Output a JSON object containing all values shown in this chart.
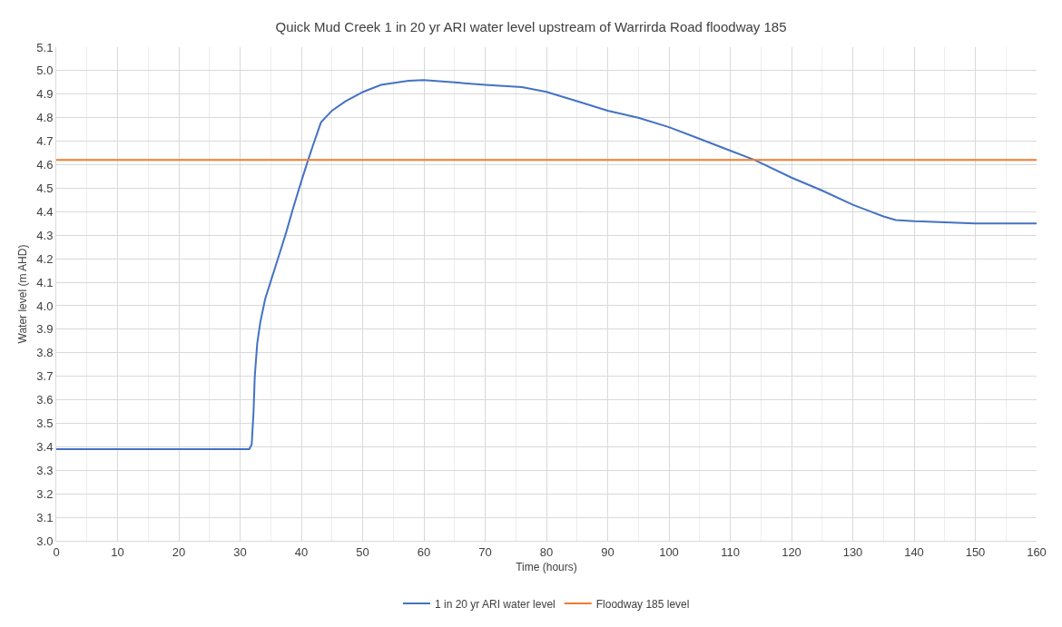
{
  "chart_data": {
    "type": "line",
    "title": "Quick Mud Creek 1 in 20 yr ARI water level upstream of Warrirda Road floodway 185",
    "xlabel": "Time (hours)",
    "ylabel": "Water level (m AHD)",
    "series": [
      {
        "name": "1 in 20 yr ARI water level",
        "color": "#4472c4",
        "x": [
          0,
          10,
          20,
          30,
          30.6,
          31.5,
          31.9,
          32.2,
          32.4,
          32.8,
          33.3,
          34.1,
          35.2,
          36.3,
          37.5,
          38.6,
          40,
          41.1,
          42,
          43.2,
          45,
          47.2,
          50.1,
          53,
          57.5,
          60,
          65,
          70,
          76,
          80,
          85,
          90,
          95,
          100,
          105,
          110,
          114,
          120,
          125,
          130,
          133,
          135,
          137,
          140,
          145,
          150,
          160
        ],
        "values": [
          3.39,
          3.39,
          3.39,
          3.39,
          3.39,
          3.39,
          3.41,
          3.55,
          3.7,
          3.84,
          3.93,
          4.03,
          4.12,
          4.21,
          4.31,
          4.41,
          4.53,
          4.62,
          4.69,
          4.78,
          4.83,
          4.87,
          4.91,
          4.94,
          4.957,
          4.96,
          4.95,
          4.94,
          4.93,
          4.91,
          4.87,
          4.83,
          4.8,
          4.76,
          4.71,
          4.66,
          4.62,
          4.545,
          4.49,
          4.43,
          4.4,
          4.38,
          4.365,
          4.36,
          4.355,
          4.35,
          4.35
        ]
      },
      {
        "name": "Floodway 185 level",
        "color": "#ed7d31",
        "x": [
          0,
          160
        ],
        "values": [
          4.62,
          4.62
        ]
      }
    ],
    "xlim": [
      0,
      160
    ],
    "xticks": [
      0,
      10,
      20,
      30,
      40,
      50,
      60,
      70,
      80,
      90,
      100,
      110,
      120,
      130,
      140,
      150,
      160
    ],
    "ylim": [
      3.0,
      5.1
    ],
    "yticks": [
      {
        "value": 3.0,
        "label": "3.0"
      },
      3.1,
      3.2,
      3.3,
      3.4,
      3.5,
      3.6,
      3.7,
      3.8,
      3.9,
      {
        "value": 4.0,
        "label": "4.0"
      },
      4.1,
      4.2,
      4.3,
      4.4,
      4.5,
      4.6,
      4.7,
      4.8,
      4.9,
      {
        "value": 5.0,
        "label": "5.0"
      },
      5.1
    ],
    "grid": true,
    "legend": "bottom",
    "marker": "none",
    "line_style": "solid"
  }
}
